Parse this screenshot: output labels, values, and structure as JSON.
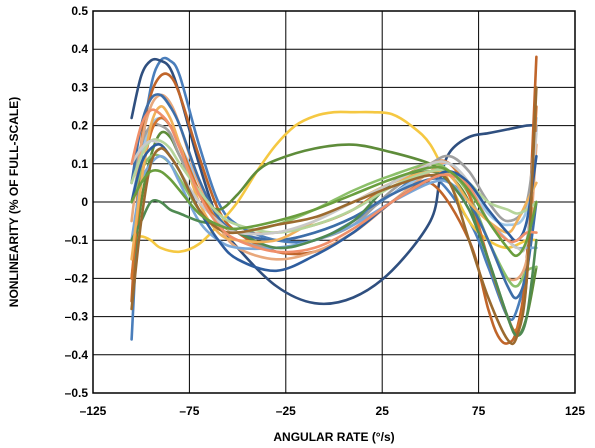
{
  "chart_data": {
    "type": "line",
    "title": "",
    "xlabel": "ANGULAR RATE (°/s)",
    "ylabel": "NONLINEARITY (% OF FULL-SCALE)",
    "xlim": [
      -125,
      125
    ],
    "ylim": [
      -0.5,
      0.5
    ],
    "xticks": [
      -125,
      -75,
      -25,
      25,
      75,
      125
    ],
    "xtick_labels": [
      "–125",
      "–75",
      "–25",
      "25",
      "75",
      "125"
    ],
    "yticks": [
      0.5,
      0.4,
      0.3,
      0.2,
      0.1,
      0,
      -0.1,
      -0.2,
      -0.3,
      -0.4,
      -0.5
    ],
    "ytick_labels": [
      "0.5",
      "0.4",
      "0.3",
      "0.2",
      "0.1",
      "0",
      "–0.1",
      "–0.2",
      "–0.3",
      "–0.4",
      "–0.5"
    ],
    "grid": true,
    "legend": "none",
    "series": [
      {
        "color": "#4a7ebb",
        "x": [
          -105,
          -100,
          -95,
          -90,
          -85,
          -80,
          -70,
          -60,
          -50,
          -30,
          -10,
          10,
          30,
          50,
          70,
          80,
          90,
          95,
          100,
          105
        ],
        "y": [
          -0.36,
          0.1,
          0.3,
          0.37,
          0.37,
          0.33,
          0.15,
          0.0,
          -0.06,
          -0.1,
          -0.1,
          -0.05,
          0.02,
          0.07,
          -0.05,
          -0.17,
          -0.3,
          -0.28,
          -0.15,
          0.2
        ]
      },
      {
        "color": "#2f4f7f",
        "x": [
          -105,
          -100,
          -95,
          -90,
          -85,
          -80,
          -70,
          -60,
          -50,
          -30,
          -10,
          10,
          30,
          50,
          55,
          60,
          70,
          80,
          90,
          100,
          105
        ],
        "y": [
          0.22,
          0.33,
          0.37,
          0.37,
          0.35,
          0.28,
          0.1,
          -0.05,
          -0.12,
          -0.22,
          -0.265,
          -0.25,
          -0.18,
          -0.05,
          0.06,
          0.13,
          0.17,
          0.18,
          0.19,
          0.2,
          0.2
        ]
      },
      {
        "color": "#c0652a",
        "x": [
          -105,
          -100,
          -95,
          -90,
          -85,
          -80,
          -70,
          -60,
          -50,
          -30,
          -10,
          10,
          30,
          50,
          70,
          80,
          85,
          90,
          95,
          100,
          105
        ],
        "y": [
          -0.26,
          0.15,
          0.28,
          0.33,
          0.33,
          0.28,
          0.12,
          -0.02,
          -0.08,
          -0.13,
          -0.13,
          -0.08,
          0.0,
          0.05,
          -0.1,
          -0.28,
          -0.35,
          -0.37,
          -0.33,
          -0.15,
          0.38
        ]
      },
      {
        "color": "#f5c842",
        "x": [
          -105,
          -100,
          -95,
          -90,
          -80,
          -70,
          -60,
          -50,
          -40,
          -30,
          -20,
          -10,
          0,
          10,
          20,
          30,
          40,
          50,
          60,
          70,
          80,
          90,
          100,
          105
        ],
        "y": [
          -0.1,
          -0.09,
          -0.1,
          -0.12,
          -0.13,
          -0.11,
          -0.06,
          0.0,
          0.08,
          0.15,
          0.2,
          0.225,
          0.235,
          0.235,
          0.235,
          0.23,
          0.2,
          0.15,
          0.05,
          -0.05,
          -0.1,
          -0.12,
          -0.1,
          -0.1
        ]
      },
      {
        "color": "#5e8c3a",
        "x": [
          -105,
          -100,
          -95,
          -90,
          -85,
          -80,
          -70,
          -60,
          -50,
          -40,
          -30,
          -10,
          10,
          30,
          50,
          60,
          70,
          80,
          90,
          95,
          100,
          105
        ],
        "y": [
          -0.2,
          0.0,
          0.12,
          0.18,
          0.17,
          0.12,
          0.02,
          -0.02,
          0.02,
          0.08,
          0.11,
          0.14,
          0.15,
          0.13,
          0.1,
          0.07,
          0.0,
          -0.15,
          -0.3,
          -0.35,
          -0.3,
          -0.17
        ]
      },
      {
        "color": "#9ec7e8",
        "x": [
          -105,
          -100,
          -95,
          -90,
          -85,
          -80,
          -70,
          -60,
          -50,
          -30,
          -10,
          10,
          30,
          50,
          60,
          70,
          80,
          90,
          100,
          105
        ],
        "y": [
          0.0,
          0.12,
          0.2,
          0.22,
          0.2,
          0.15,
          0.05,
          -0.04,
          -0.08,
          -0.1,
          -0.08,
          -0.04,
          0.02,
          0.08,
          0.1,
          0.05,
          -0.03,
          -0.06,
          -0.02,
          0.22
        ]
      },
      {
        "color": "#a0a0a0",
        "x": [
          -105,
          -100,
          -95,
          -90,
          -85,
          -80,
          -70,
          -60,
          -50,
          -30,
          -10,
          10,
          30,
          50,
          60,
          70,
          80,
          90,
          100,
          105
        ],
        "y": [
          0.05,
          0.15,
          0.2,
          0.2,
          0.18,
          0.12,
          0.02,
          -0.06,
          -0.1,
          -0.12,
          -0.1,
          -0.06,
          0.03,
          0.1,
          0.12,
          0.08,
          0.0,
          -0.05,
          0.0,
          0.2
        ]
      },
      {
        "color": "#e8a87c",
        "x": [
          -105,
          -100,
          -95,
          -90,
          -85,
          -80,
          -70,
          -60,
          -50,
          -30,
          -10,
          10,
          30,
          50,
          60,
          70,
          80,
          90,
          100,
          105
        ],
        "y": [
          -0.05,
          0.15,
          0.25,
          0.28,
          0.26,
          0.2,
          0.05,
          -0.06,
          -0.12,
          -0.15,
          -0.13,
          -0.08,
          0.0,
          0.08,
          0.1,
          0.02,
          -0.1,
          -0.2,
          -0.15,
          0.15
        ]
      },
      {
        "color": "#8cc06a",
        "x": [
          -105,
          -100,
          -95,
          -90,
          -85,
          -80,
          -70,
          -60,
          -50,
          -30,
          -10,
          10,
          30,
          50,
          60,
          70,
          80,
          90,
          95,
          100,
          105
        ],
        "y": [
          0.0,
          0.08,
          0.12,
          0.12,
          0.1,
          0.06,
          -0.02,
          -0.07,
          -0.08,
          -0.06,
          -0.02,
          0.03,
          0.07,
          0.1,
          0.08,
          0.02,
          -0.1,
          -0.2,
          -0.22,
          -0.18,
          -0.17
        ]
      },
      {
        "color": "#d4732d",
        "x": [
          -105,
          -100,
          -95,
          -90,
          -85,
          -80,
          -70,
          -60,
          -50,
          -30,
          -10,
          10,
          30,
          50,
          60,
          70,
          80,
          90,
          95,
          100,
          105
        ],
        "y": [
          -0.2,
          0.05,
          0.18,
          0.22,
          0.2,
          0.15,
          0.03,
          -0.05,
          -0.08,
          -0.08,
          -0.06,
          -0.02,
          0.05,
          0.1,
          0.1,
          0.02,
          -0.15,
          -0.3,
          -0.33,
          -0.2,
          0.25
        ]
      },
      {
        "color": "#3d6ea8",
        "x": [
          -105,
          -100,
          -95,
          -90,
          -85,
          -80,
          -70,
          -60,
          -50,
          -30,
          -10,
          10,
          30,
          50,
          60,
          70,
          80,
          90,
          95,
          100,
          105
        ],
        "y": [
          0.05,
          0.2,
          0.27,
          0.28,
          0.25,
          0.2,
          0.06,
          -0.04,
          -0.08,
          -0.1,
          -0.08,
          -0.04,
          0.02,
          0.06,
          0.05,
          0.0,
          -0.1,
          -0.22,
          -0.25,
          -0.18,
          0.0
        ]
      },
      {
        "color": "#7aa7d8",
        "x": [
          -105,
          -100,
          -95,
          -90,
          -85,
          -80,
          -70,
          -60,
          -50,
          -30,
          -10,
          10,
          30,
          50,
          60,
          70,
          80,
          90,
          95,
          100,
          105
        ],
        "y": [
          -0.1,
          0.05,
          0.1,
          0.12,
          0.1,
          0.05,
          -0.05,
          -0.1,
          -0.12,
          -0.12,
          -0.1,
          -0.06,
          0.0,
          0.05,
          0.05,
          0.0,
          -0.05,
          -0.1,
          -0.12,
          -0.12,
          -0.12
        ]
      },
      {
        "color": "#4f8a52",
        "x": [
          -105,
          -100,
          -95,
          -90,
          -85,
          -80,
          -70,
          -60,
          -50,
          -30,
          -10,
          10,
          30,
          50,
          60,
          70,
          80,
          90,
          95,
          100,
          105
        ],
        "y": [
          -0.1,
          -0.05,
          0.0,
          0.0,
          -0.02,
          -0.03,
          -0.05,
          -0.06,
          -0.08,
          -0.12,
          -0.1,
          -0.05,
          0.05,
          0.08,
          0.05,
          -0.02,
          -0.15,
          -0.3,
          -0.35,
          -0.3,
          -0.1
        ]
      },
      {
        "color": "#f0b15a",
        "x": [
          -105,
          -100,
          -95,
          -90,
          -85,
          -80,
          -70,
          -60,
          -50,
          -30,
          -10,
          10,
          30,
          50,
          60,
          70,
          80,
          90,
          95,
          100,
          105
        ],
        "y": [
          -0.15,
          0.05,
          0.2,
          0.25,
          0.22,
          0.15,
          0.0,
          -0.08,
          -0.1,
          -0.1,
          -0.05,
          0.0,
          0.05,
          0.08,
          0.07,
          0.0,
          -0.05,
          -0.08,
          -0.05,
          0.0,
          0.05
        ]
      },
      {
        "color": "#b5d49a",
        "x": [
          -105,
          -100,
          -95,
          -90,
          -85,
          -80,
          -70,
          -60,
          -50,
          -30,
          -10,
          10,
          30,
          50,
          60,
          70,
          80,
          90,
          95,
          100,
          105
        ],
        "y": [
          0.05,
          0.12,
          0.16,
          0.16,
          0.14,
          0.1,
          0.03,
          -0.03,
          -0.06,
          -0.08,
          -0.06,
          -0.02,
          0.04,
          0.08,
          0.08,
          0.05,
          0.0,
          -0.02,
          -0.03,
          -0.02,
          0.0
        ]
      },
      {
        "color": "#c9c9c9",
        "x": [
          -105,
          -100,
          -95,
          -90,
          -85,
          -80,
          -70,
          -60,
          -50,
          -30,
          -10,
          10,
          30,
          50,
          60,
          70,
          80,
          90,
          95,
          100,
          105
        ],
        "y": [
          0.1,
          0.14,
          0.16,
          0.15,
          0.12,
          0.08,
          0.0,
          -0.05,
          -0.08,
          -0.08,
          -0.05,
          0.0,
          0.05,
          0.1,
          0.1,
          0.05,
          -0.05,
          -0.1,
          -0.12,
          -0.1,
          0.18
        ]
      },
      {
        "color": "#2e5d9e",
        "x": [
          -105,
          -100,
          -95,
          -90,
          -85,
          -80,
          -70,
          -60,
          -50,
          -30,
          -10,
          10,
          30,
          50,
          60,
          70,
          80,
          90,
          95,
          100,
          105
        ],
        "y": [
          0.0,
          0.1,
          0.14,
          0.15,
          0.12,
          0.08,
          -0.02,
          -0.1,
          -0.15,
          -0.18,
          -0.14,
          -0.08,
          0.0,
          0.06,
          0.08,
          0.05,
          -0.02,
          -0.08,
          -0.1,
          -0.05,
          0.12
        ]
      },
      {
        "color": "#9b6a2f",
        "x": [
          -105,
          -100,
          -95,
          -90,
          -85,
          -80,
          -70,
          -60,
          -50,
          -30,
          -10,
          10,
          30,
          50,
          60,
          70,
          80,
          90,
          95,
          100,
          105
        ],
        "y": [
          -0.28,
          -0.05,
          0.1,
          0.14,
          0.12,
          0.08,
          -0.02,
          -0.07,
          -0.08,
          -0.06,
          -0.04,
          0.0,
          0.04,
          0.07,
          0.05,
          -0.1,
          -0.25,
          -0.36,
          -0.35,
          -0.2,
          0.3
        ]
      },
      {
        "color": "#f08f6a",
        "x": [
          -105,
          -100,
          -95,
          -90,
          -85,
          -80,
          -70,
          -60,
          -50,
          -30,
          -10,
          10,
          30,
          50,
          60,
          70,
          80,
          90,
          95,
          100,
          105
        ],
        "y": [
          0.1,
          0.2,
          0.24,
          0.23,
          0.2,
          0.14,
          0.02,
          -0.06,
          -0.1,
          -0.13,
          -0.12,
          -0.07,
          0.0,
          0.06,
          0.07,
          0.04,
          -0.05,
          -0.1,
          -0.1,
          -0.08,
          -0.08
        ]
      },
      {
        "color": "#6a9e3e",
        "x": [
          -105,
          -100,
          -95,
          -90,
          -85,
          -80,
          -70,
          -60,
          -50,
          -30,
          -10,
          10,
          30,
          50,
          60,
          70,
          80,
          90,
          95,
          100,
          105
        ],
        "y": [
          0.0,
          0.05,
          0.08,
          0.08,
          0.06,
          0.03,
          -0.03,
          -0.06,
          -0.07,
          -0.05,
          -0.02,
          0.02,
          0.06,
          0.09,
          0.08,
          0.03,
          -0.05,
          -0.12,
          -0.14,
          -0.1,
          0.0
        ]
      }
    ]
  }
}
